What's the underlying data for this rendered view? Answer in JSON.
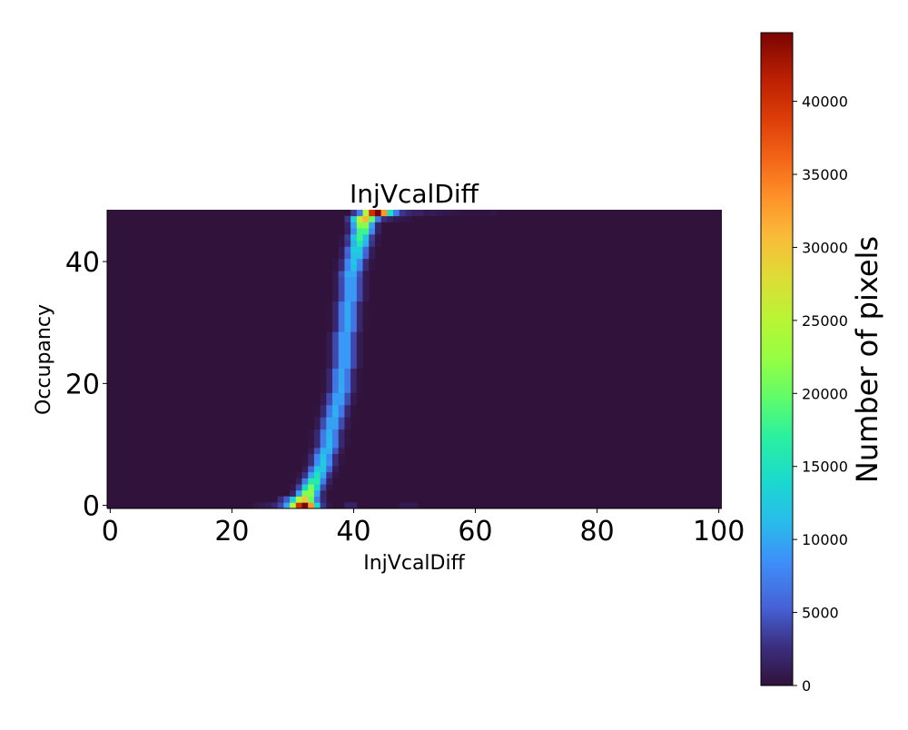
{
  "chart_data": {
    "type": "heatmap",
    "title": "InjVcalDiff",
    "xlabel": "InjVcalDiff",
    "ylabel": "Occupancy",
    "xlim": [
      -0.5,
      100.5
    ],
    "ylim": [
      -0.5,
      48.5
    ],
    "x_ticks": [
      0,
      20,
      40,
      60,
      80,
      100
    ],
    "y_ticks": [
      0,
      20,
      40
    ],
    "x_bins": 101,
    "y_bins": 49,
    "colormap": "turbo",
    "background_value": 0,
    "colorbar": {
      "label": "Number of pixels",
      "vmin": 0,
      "vmax": 44700,
      "ticks": [
        0,
        5000,
        10000,
        15000,
        20000,
        25000,
        30000,
        35000,
        40000
      ]
    },
    "rows": [
      {
        "y": 0,
        "start": 24,
        "values": [
          500,
          800,
          1200,
          2000,
          4000,
          10000,
          25000,
          40000,
          44600,
          33000,
          14000,
          3000,
          500,
          0,
          0,
          1500,
          1500,
          0,
          0,
          0,
          0,
          0,
          0,
          0,
          800,
          800,
          800
        ]
      },
      {
        "y": 1,
        "start": 28,
        "values": [
          2500,
          5000,
          13000,
          25000,
          30000,
          20000,
          7000,
          2000
        ]
      },
      {
        "y": 2,
        "start": 30,
        "values": [
          1800,
          9600,
          21600,
          21600,
          9600,
          1800
        ]
      },
      {
        "y": 3,
        "start": 30,
        "values": [
          500,
          4000,
          13900,
          21000,
          13900,
          4000,
          500
        ]
      },
      {
        "y": 4,
        "start": 31,
        "values": [
          1400,
          7200,
          16200,
          16200,
          7200,
          1400
        ]
      },
      {
        "y": 5,
        "start": 31,
        "values": [
          400,
          2900,
          9900,
          15000,
          9900,
          2900,
          400
        ]
      },
      {
        "y": 6,
        "start": 32,
        "values": [
          1000,
          5400,
          12200,
          12200,
          5400,
          1000
        ]
      },
      {
        "y": 7,
        "start": 32,
        "values": [
          300,
          2400,
          8300,
          12500,
          8300,
          2400,
          300
        ]
      },
      {
        "y": 8,
        "start": 32,
        "values": [
          300,
          2300,
          7900,
          12000,
          7900,
          2300,
          300
        ]
      },
      {
        "y": 9,
        "start": 33,
        "values": [
          900,
          4600,
          10400,
          10400,
          4600,
          900
        ]
      },
      {
        "y": 10,
        "start": 33,
        "values": [
          300,
          2100,
          7300,
          11000,
          7300,
          2100,
          300
        ]
      },
      {
        "y": 11,
        "start": 33,
        "values": [
          300,
          2100,
          7100,
          10800,
          7100,
          2100,
          300
        ]
      },
      {
        "y": 12,
        "start": 33,
        "values": [
          300,
          2000,
          7000,
          10600,
          7000,
          2000,
          300
        ]
      },
      {
        "y": 13,
        "start": 34,
        "values": [
          800,
          4200,
          9500,
          9500,
          4200,
          800
        ]
      },
      {
        "y": 14,
        "start": 34,
        "values": [
          800,
          4200,
          9500,
          9500,
          4200,
          800
        ]
      },
      {
        "y": 15,
        "start": 34,
        "values": [
          200,
          2000,
          6900,
          10400,
          6900,
          2000,
          200
        ]
      },
      {
        "y": 16,
        "start": 34,
        "values": [
          200,
          2000,
          6800,
          10300,
          6800,
          2000,
          200
        ]
      },
      {
        "y": 17,
        "start": 35,
        "values": [
          800,
          4100,
          9200,
          9200,
          4100,
          800
        ]
      },
      {
        "y": 18,
        "start": 35,
        "values": [
          800,
          4100,
          9200,
          9200,
          4100,
          800
        ]
      },
      {
        "y": 19,
        "start": 35,
        "values": [
          200,
          1900,
          6700,
          10100,
          6700,
          1900,
          200
        ]
      },
      {
        "y": 20,
        "start": 35,
        "values": [
          200,
          1900,
          6600,
          10000,
          6600,
          1900,
          200
        ]
      },
      {
        "y": 21,
        "start": 35,
        "values": [
          200,
          1900,
          6600,
          10000,
          6600,
          1900,
          200
        ]
      },
      {
        "y": 22,
        "start": 35,
        "values": [
          200,
          1900,
          6600,
          10000,
          6600,
          1900,
          200
        ]
      },
      {
        "y": 23,
        "start": 36,
        "values": [
          800,
          4000,
          9000,
          9000,
          4000,
          800
        ]
      },
      {
        "y": 24,
        "start": 36,
        "values": [
          800,
          4000,
          9000,
          9000,
          4000,
          800
        ]
      },
      {
        "y": 25,
        "start": 36,
        "values": [
          800,
          4000,
          9000,
          9000,
          4000,
          800
        ]
      },
      {
        "y": 26,
        "start": 36,
        "values": [
          800,
          4000,
          9000,
          9000,
          4000,
          800
        ]
      },
      {
        "y": 27,
        "start": 36,
        "values": [
          800,
          4000,
          9000,
          9000,
          4000,
          800
        ]
      },
      {
        "y": 28,
        "start": 36,
        "values": [
          800,
          4000,
          9000,
          9000,
          4000,
          800
        ]
      },
      {
        "y": 29,
        "start": 36,
        "values": [
          200,
          1900,
          6600,
          10000,
          6600,
          1900,
          200
        ]
      },
      {
        "y": 30,
        "start": 36,
        "values": [
          200,
          1900,
          6600,
          10000,
          6600,
          1900,
          200
        ]
      },
      {
        "y": 31,
        "start": 36,
        "values": [
          200,
          1900,
          6600,
          10000,
          6600,
          1900,
          200
        ]
      },
      {
        "y": 32,
        "start": 36,
        "values": [
          200,
          1900,
          6600,
          10000,
          6600,
          1900,
          200
        ]
      },
      {
        "y": 33,
        "start": 36,
        "values": [
          200,
          1900,
          6600,
          10000,
          6600,
          1900,
          200
        ]
      },
      {
        "y": 34,
        "start": 37,
        "values": [
          800,
          4000,
          9000,
          9000,
          4000,
          800
        ]
      },
      {
        "y": 35,
        "start": 37,
        "values": [
          800,
          4000,
          9000,
          9000,
          4000,
          800
        ]
      },
      {
        "y": 36,
        "start": 37,
        "values": [
          800,
          4000,
          9000,
          9000,
          4000,
          800
        ]
      },
      {
        "y": 37,
        "start": 37,
        "values": [
          800,
          4000,
          9000,
          9000,
          4000,
          800
        ]
      },
      {
        "y": 38,
        "start": 37,
        "values": [
          800,
          4400,
          9900,
          9900,
          4400,
          800
        ]
      },
      {
        "y": 39,
        "start": 37,
        "values": [
          300,
          2200,
          7600,
          11500,
          7600,
          2200,
          300
        ]
      },
      {
        "y": 40,
        "start": 37,
        "values": [
          300,
          2300,
          7900,
          12000,
          7900,
          2300,
          300
        ]
      },
      {
        "y": 41,
        "start": 38,
        "values": [
          1000,
          5200,
          11700,
          11700,
          5200,
          1000
        ]
      },
      {
        "y": 42,
        "start": 38,
        "values": [
          1100,
          5600,
          12600,
          12600,
          5600,
          1100
        ]
      },
      {
        "y": 43,
        "start": 38,
        "values": [
          400,
          3000,
          10600,
          16000,
          10600,
          3000,
          400
        ]
      },
      {
        "y": 44,
        "start": 38,
        "values": [
          400,
          3400,
          11900,
          18000,
          11900,
          3400,
          400
        ]
      },
      {
        "y": 45,
        "start": 39,
        "values": [
          1500,
          8000,
          18000,
          18000,
          8000,
          1500
        ]
      },
      {
        "y": 46,
        "start": 39,
        "values": [
          1800,
          9600,
          21600,
          21600,
          9600,
          1800
        ]
      },
      {
        "y": 47,
        "start": 39,
        "values": [
          3000,
          13000,
          26000,
          31000,
          20000,
          7000,
          2500,
          1500,
          800,
          600,
          400
        ]
      },
      {
        "y": 48,
        "start": 40,
        "values": [
          3000,
          7000,
          25000,
          40000,
          44600,
          33000,
          15000,
          7000,
          3000,
          2000,
          1500,
          1500,
          800,
          1000,
          800,
          600,
          500,
          400,
          300,
          200,
          200,
          200,
          200,
          600
        ]
      }
    ]
  }
}
